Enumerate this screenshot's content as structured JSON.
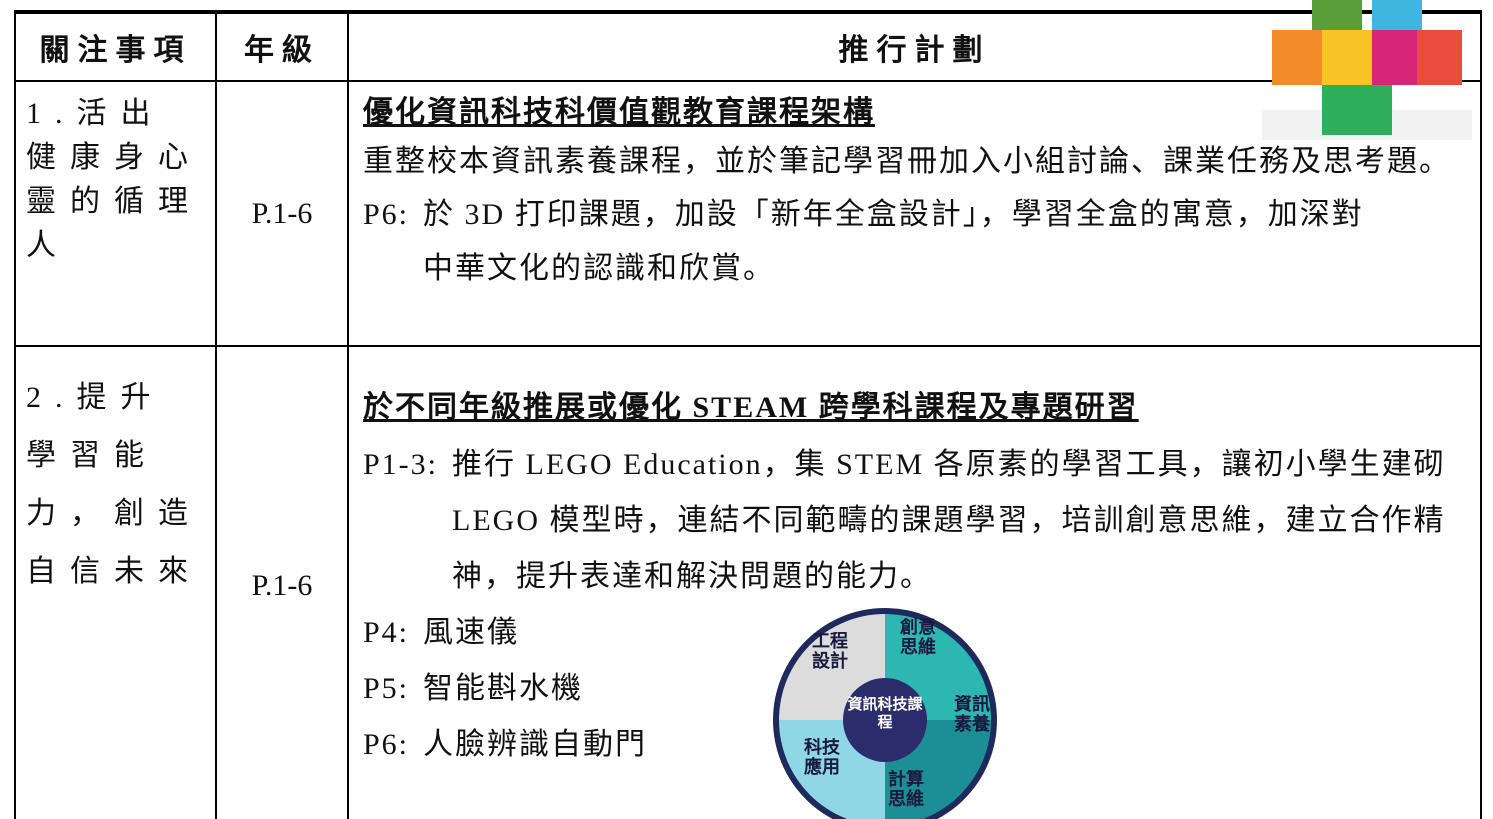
{
  "header": {
    "focus": "關注事項",
    "grade": "年級",
    "plan": "推行計劃"
  },
  "rows": [
    {
      "focus": "1.活出健康身心靈的循理人",
      "grade": "P.1-6",
      "heading": "優化資訊科技科價值觀教育課程架構",
      "paragraph": "重整校本資訊素養課程，並於筆記學習冊加入小組討論、課業任務及思考題。",
      "items": [
        {
          "label": "P6:",
          "text": "於 3D 打印課題，加設「新年全盒設計」，學習全盒的寓意，加深對中華文化的認識和欣賞。"
        }
      ]
    },
    {
      "focus": "2.提升學習能力，創造自信未來",
      "grade": "P.1-6",
      "heading": "於不同年級推展或優化 STEAM 跨學科課程及專題研習",
      "items": [
        {
          "label": "P1-3:",
          "text": "推行 LEGO Education，集 STEM 各原素的學習工具，讓初小學生建砌 LEGO 模型時，連結不同範疇的課題學習，培訓創意思維，建立合作精神，提升表達和解決問題的能力。"
        },
        {
          "label": "P4:",
          "text": "風速儀"
        },
        {
          "label": "P5:",
          "text": "智能斟水機"
        },
        {
          "label": "P6:",
          "text": "人臉辨識自動門"
        }
      ]
    }
  ],
  "diagram": {
    "center": "資訊科技課程",
    "pieces": [
      "創意思維",
      "資訊素養",
      "計算思維",
      "科技應用",
      "工程設計"
    ]
  }
}
